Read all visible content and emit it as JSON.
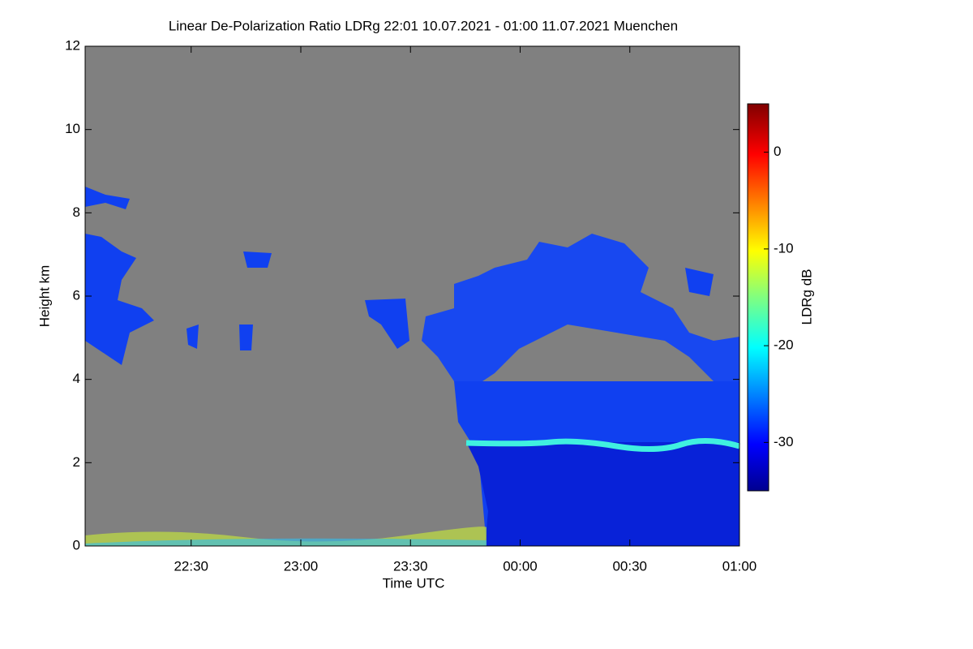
{
  "chart_data": {
    "type": "heatmap",
    "title": "Linear De-Polarization Ratio LDRg   22:01 10.07.2021 - 01:00 11.07.2021 Muenchen",
    "x_label": "Time UTC",
    "y_label": "Height km",
    "colorbar_label": "LDRg dB",
    "xlim": [
      0,
      179
    ],
    "xticks": [
      {
        "value": 29,
        "label": "22:30"
      },
      {
        "value": 59,
        "label": "23:00"
      },
      {
        "value": 89,
        "label": "23:30"
      },
      {
        "value": 119,
        "label": "00:00"
      },
      {
        "value": 149,
        "label": "00:30"
      },
      {
        "value": 179,
        "label": "01:00"
      }
    ],
    "ylim": [
      0,
      12
    ],
    "yticks": [
      0,
      2,
      4,
      6,
      8,
      10,
      12
    ],
    "clim": [
      -35,
      5
    ],
    "cticks": [
      0,
      -10,
      -20,
      -30
    ]
  }
}
